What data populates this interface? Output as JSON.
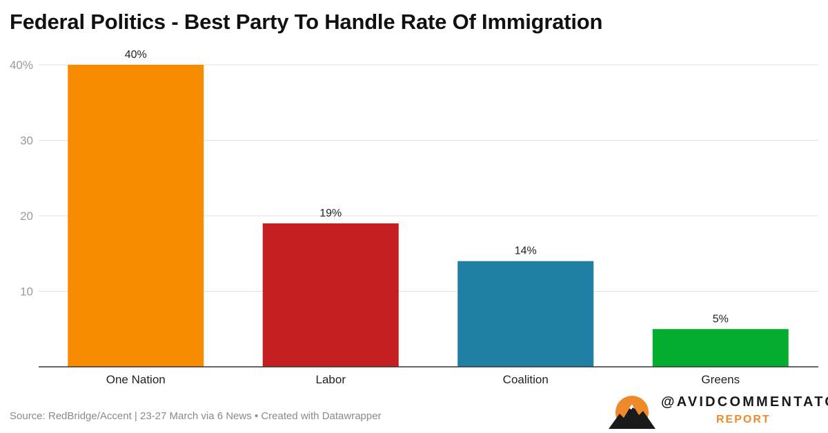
{
  "chart_data": {
    "type": "bar",
    "title": "Federal Politics - Best Party To Handle Rate Of Immigration",
    "categories": [
      "One Nation",
      "Labor",
      "Coalition",
      "Greens"
    ],
    "values": [
      40,
      19,
      14,
      5
    ],
    "value_labels": [
      "40%",
      "19%",
      "14%",
      "5%"
    ],
    "colors": [
      "#f78c00",
      "#c41e1e",
      "#1f80a3",
      "#04ad2e"
    ],
    "ylim": [
      0,
      40
    ],
    "yticks": [
      10,
      20,
      30,
      40
    ],
    "ytick_labels": [
      "10",
      "20",
      "30",
      "40%"
    ],
    "grid": true,
    "legend": "none"
  },
  "footer": {
    "source": "Source: RedBridge/Accent | 23-27 March via 6 News • Created with Datawrapper"
  },
  "logo": {
    "handle": "@AVIDCOMMENTATOR",
    "sub": "REPORT",
    "colors": {
      "sun": "#ef8a2a",
      "mountain": "#1a1a1a"
    }
  }
}
